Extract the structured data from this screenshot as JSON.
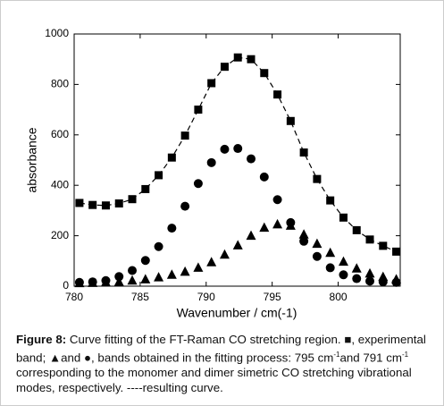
{
  "chart_data": {
    "type": "scatter",
    "xlabel": "Wavenumber / cm(-1)",
    "ylabel": "absorbance",
    "xlim": [
      780,
      804.7
    ],
    "ylim": [
      0,
      1000
    ],
    "xticks": [
      780,
      785,
      790,
      795,
      800
    ],
    "yticks": [
      0,
      200,
      400,
      600,
      800,
      1000
    ],
    "x": [
      780.4,
      781.4,
      782.4,
      783.4,
      784.4,
      785.4,
      786.4,
      787.4,
      788.4,
      789.4,
      790.4,
      791.4,
      792.4,
      793.4,
      794.4,
      795.4,
      796.4,
      797.4,
      798.4,
      799.4,
      800.4,
      801.4,
      802.4,
      803.4,
      804.4
    ],
    "series": [
      {
        "marker": "square",
        "color": "#000000",
        "line": "dashed",
        "values": [
          330,
          322,
          320,
          328,
          345,
          385,
          440,
          510,
          597,
          700,
          805,
          870,
          907,
          900,
          845,
          760,
          655,
          530,
          425,
          340,
          272,
          222,
          185,
          160,
          137
        ]
      },
      {
        "marker": "circle",
        "color": "#000000",
        "values": [
          15,
          17,
          22,
          38,
          62,
          102,
          157,
          230,
          317,
          407,
          490,
          543,
          546,
          505,
          433,
          343,
          252,
          178,
          118,
          73,
          45,
          30,
          20,
          17,
          15
        ]
      },
      {
        "marker": "triangle",
        "color": "#000000",
        "values": [
          12,
          13,
          15,
          17,
          22,
          27,
          35,
          45,
          57,
          73,
          95,
          125,
          162,
          200,
          232,
          245,
          240,
          205,
          168,
          132,
          97,
          70,
          50,
          37,
          27
        ]
      }
    ]
  },
  "caption": {
    "label": "Figure 8:",
    "text": [
      " Curve fitting of the FT-Raman CO stretching region. ■, experimental band; ▲and ●, bands obtained in the fitting process: 795 cm",
      "-1",
      "and 791 cm",
      "-1",
      " corresponding to the monomer and dimer simetric CO stretching vibrational modes, respectively. ----resulting curve."
    ]
  }
}
